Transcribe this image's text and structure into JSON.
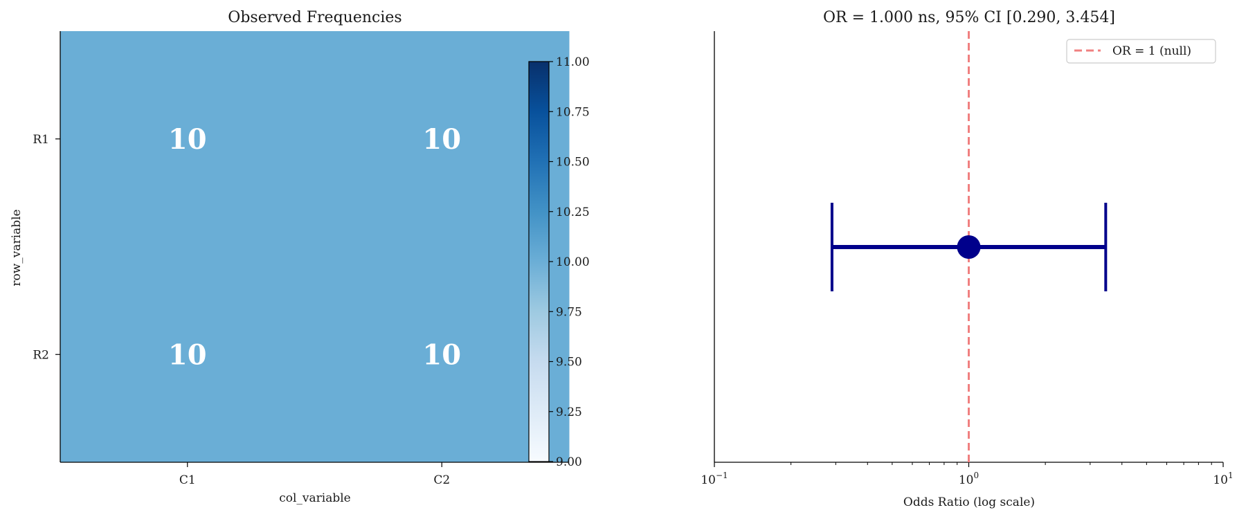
{
  "chart_data": [
    {
      "type": "heatmap",
      "title": "Observed Frequencies",
      "xlabel": "col_variable",
      "ylabel": "row_variable",
      "x_categories": [
        "C1",
        "C2"
      ],
      "y_categories": [
        "R1",
        "R2"
      ],
      "values": [
        [
          10,
          10
        ],
        [
          10,
          10
        ]
      ],
      "colorbar": {
        "range": [
          9.0,
          11.0
        ],
        "ticks": [
          "9.00",
          "9.25",
          "9.50",
          "9.75",
          "10.00",
          "10.25",
          "10.50",
          "10.75",
          "11.00"
        ],
        "colormap": "Blues"
      },
      "cell_color": "#6aaed6"
    },
    {
      "type": "scatter",
      "title": "OR = 1.000 ns, 95% CI [0.290, 3.454]",
      "xlabel": "Odds Ratio (log scale)",
      "ylabel": "",
      "x_scale": "log",
      "xlim": [
        0.1,
        10
      ],
      "x_tick_labels": [
        {
          "base": "10",
          "exp": "−1"
        },
        {
          "base": "10",
          "exp": "0"
        },
        {
          "base": "10",
          "exp": "1"
        }
      ],
      "point": {
        "x": 1.0,
        "ci_low": 0.29,
        "ci_high": 3.454
      },
      "point_color": "#00008b",
      "null_line": {
        "x": 1.0,
        "label": "OR = 1 (null)",
        "color": "#f08080"
      },
      "legend_position": "top-right"
    }
  ]
}
